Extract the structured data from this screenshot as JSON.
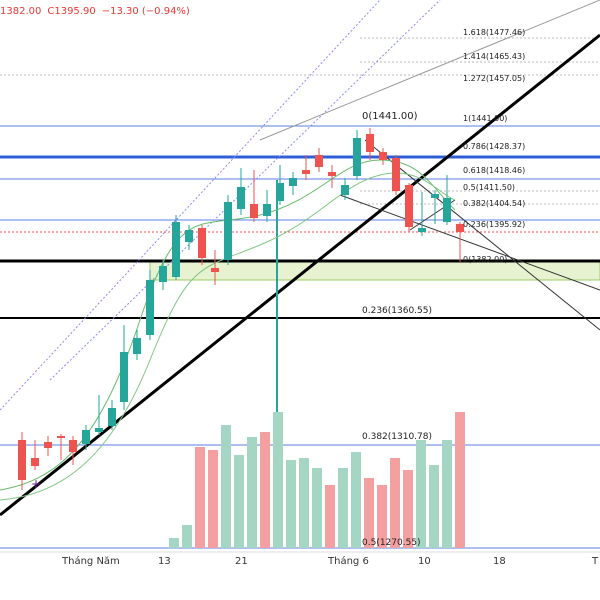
{
  "header": {
    "low": "1382.00",
    "close": "C1395.90",
    "change": "−13.30 (−0.94%)"
  },
  "colors": {
    "up": "#26a69a",
    "down": "#ef5350",
    "up_volume": "#a5d6c4",
    "down_volume": "#f4a0a0",
    "fib_line": "#5b7ee5",
    "trend_line": "#000000",
    "support_zone": "#e6f2d0"
  },
  "x_axis": {
    "labels": [
      "Tháng Năm",
      "13",
      "21",
      "Tháng 6",
      "10",
      "18",
      "T"
    ]
  },
  "fib_levels_upper": [
    {
      "label": "1.618(1477.46)"
    },
    {
      "label": "1.414(1465.43)"
    },
    {
      "label": "1.272(1457.05)"
    },
    {
      "label": "1(1441.00)"
    },
    {
      "label": "0.786(1428.37)"
    },
    {
      "label": "0.618(1418.46)"
    },
    {
      "label": "0.5(1411.50)"
    },
    {
      "label": "0.382(1404.54)"
    },
    {
      "label": "0.236(1395.92)"
    },
    {
      "label": "0(1382.00)"
    }
  ],
  "fib_zero_label": "0(1441.00)",
  "fib_levels_lower": [
    {
      "label": "0.236(1360.55)"
    },
    {
      "label": "0.382(1310.78)"
    },
    {
      "label": "0.5(1270.55)"
    }
  ]
}
